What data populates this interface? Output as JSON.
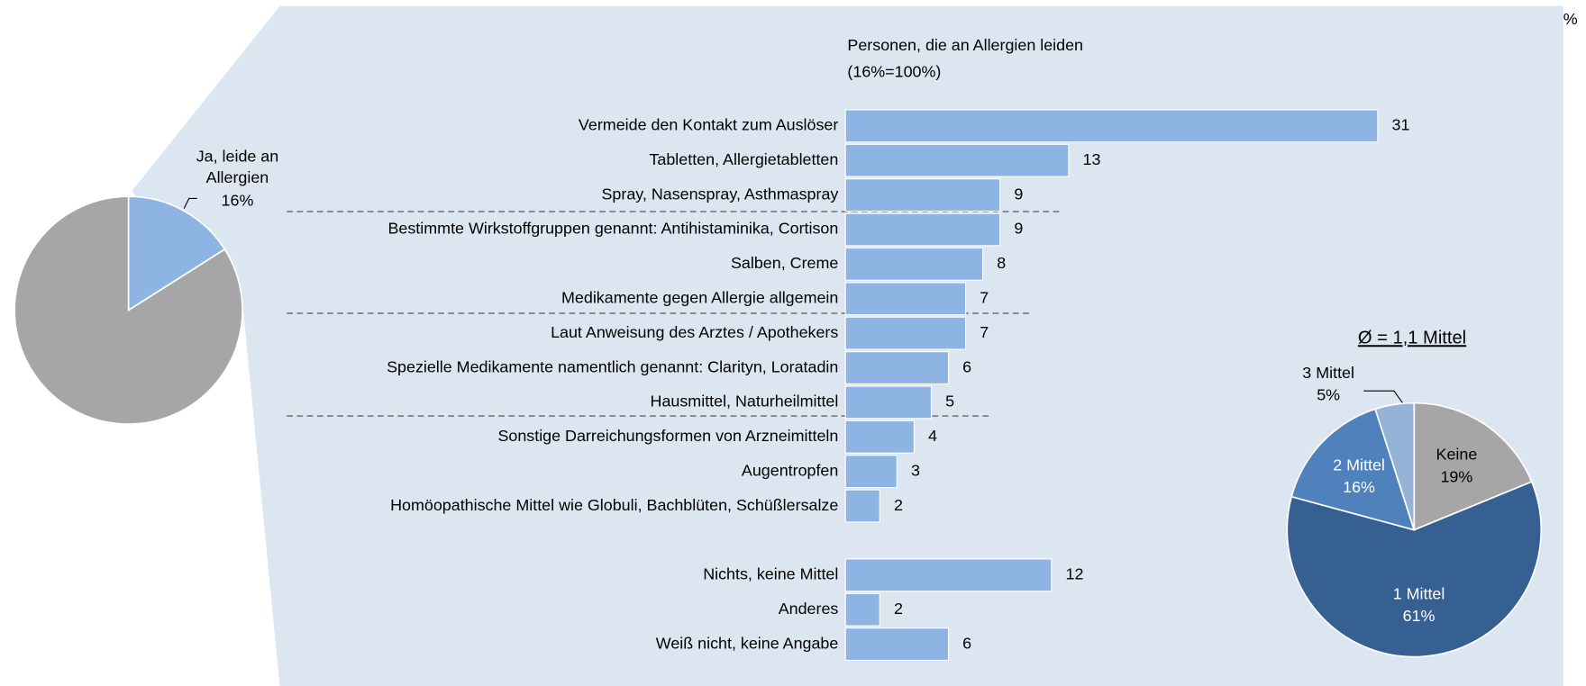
{
  "chart_data": [
    {
      "type": "pie",
      "categories": [
        "Ja, leide an Allergien",
        null
      ],
      "values": [
        16,
        84
      ],
      "value_labels": [
        "16%",
        null
      ],
      "colors": [
        "#8eb4e3",
        "#a6a6a6"
      ]
    },
    {
      "type": "hbar",
      "title": "Personen, die an Allergien leiden",
      "subtitle": "(16%=100%)",
      "unit": "%",
      "color": "#8eb4e3",
      "categories": [
        "Vermeide den Kontakt zum Auslöser",
        "Tabletten, Allergietabletten",
        "Spray, Nasenspray, Asthmaspray",
        "Bestimmte Wirkstoffgruppen genannt: Antihistaminika, Cortison",
        "Salben, Creme",
        "Medikamente gegen Allergie allgemein",
        "Laut Anweisung des Arztes / Apothekers",
        "Spezielle Medikamente namentlich genannt: Clarityn, Loratadin",
        "Hausmittel, Naturheilmittel",
        "Sonstige Darreichungsformen von Arzneimitteln",
        "Augentropfen",
        "Homöopathische Mittel wie Globuli, Bachblüten, Schüßlersalze",
        "Nichts, keine Mittel",
        "Anderes",
        "Weiß nicht, keine Angabe"
      ],
      "values": [
        31,
        13,
        9,
        9,
        8,
        7,
        7,
        6,
        5,
        4,
        3,
        2,
        12,
        2,
        6
      ]
    },
    {
      "type": "pie",
      "title": "Ø = 1,1 Mittel",
      "categories": [
        "Keine",
        "1 Mittel",
        "2 Mittel",
        "3 Mittel"
      ],
      "values": [
        19,
        61,
        16,
        5
      ],
      "value_labels": [
        "19%",
        "61%",
        "16%",
        "5%"
      ],
      "colors": [
        "#a6a6a6",
        "#376092",
        "#4f81bd",
        "#95b3d7"
      ]
    }
  ]
}
